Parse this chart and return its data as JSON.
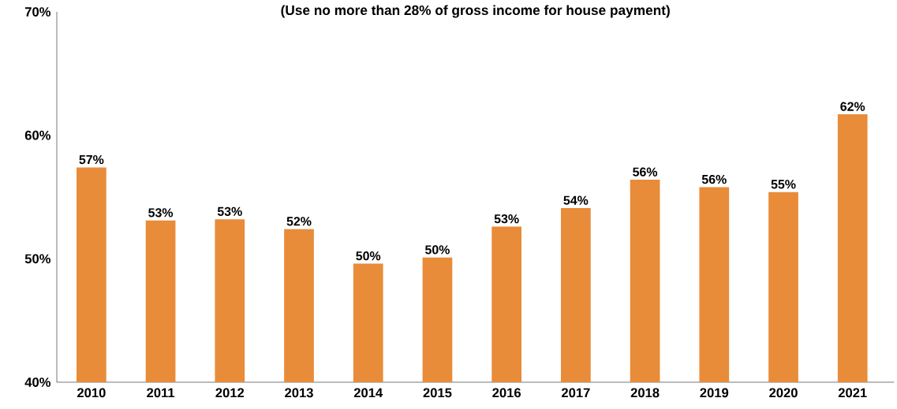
{
  "chart_data": {
    "type": "bar",
    "title": "(Use no more than 28% of gross income for house payment)",
    "categories": [
      "2010",
      "2011",
      "2012",
      "2013",
      "2014",
      "2015",
      "2016",
      "2017",
      "2018",
      "2019",
      "2020",
      "2021"
    ],
    "values": [
      57.4,
      53.1,
      53.2,
      52.4,
      49.6,
      50.1,
      52.6,
      54.1,
      56.4,
      55.8,
      55.4,
      61.7
    ],
    "value_labels": [
      "57%",
      "53%",
      "53%",
      "52%",
      "50%",
      "50%",
      "53%",
      "54%",
      "56%",
      "56%",
      "55%",
      "62%"
    ],
    "color": "#e88c3a",
    "ylim": [
      40,
      70
    ],
    "yticks": [
      {
        "value": 40,
        "label": "40%"
      },
      {
        "value": 50,
        "label": "50%"
      },
      {
        "value": 60,
        "label": "60%"
      },
      {
        "value": 70,
        "label": "70%"
      }
    ]
  }
}
